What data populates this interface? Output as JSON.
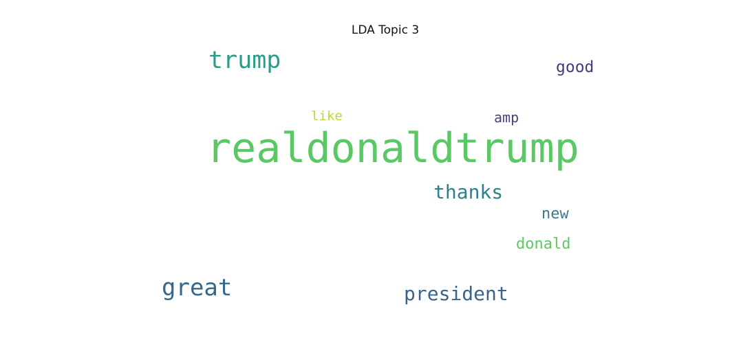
{
  "chart_data": {
    "type": "wordcloud",
    "title": "LDA Topic 3",
    "words": [
      {
        "text": "realdonaldtrump",
        "weight": 1.0,
        "color": "#5ac864"
      },
      {
        "text": "trump",
        "weight": 0.58,
        "color": "#2a9d8a"
      },
      {
        "text": "great",
        "weight": 0.56,
        "color": "#31688e"
      },
      {
        "text": "president",
        "weight": 0.47,
        "color": "#3b628d"
      },
      {
        "text": "thanks",
        "weight": 0.46,
        "color": "#2d7f8e"
      },
      {
        "text": "good",
        "weight": 0.39,
        "color": "#443a83"
      },
      {
        "text": "donald",
        "weight": 0.36,
        "color": "#5ec962"
      },
      {
        "text": "new",
        "weight": 0.36,
        "color": "#3c7a8d"
      },
      {
        "text": "amp",
        "weight": 0.34,
        "color": "#46417f"
      },
      {
        "text": "like",
        "weight": 0.32,
        "color": "#b5de2b"
      }
    ]
  }
}
